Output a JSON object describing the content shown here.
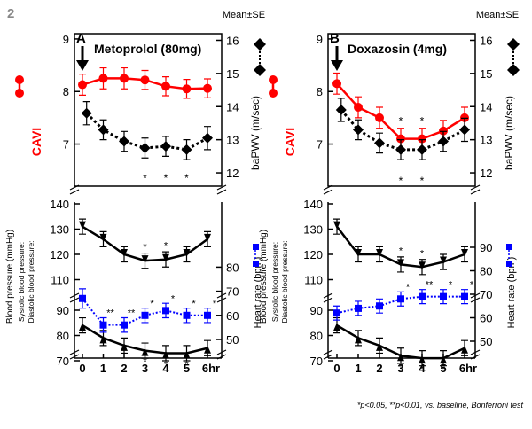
{
  "figure_number": "2",
  "footnote": "*p<0.05, **p<0.01, vs. baseline, Bonferroni test",
  "colors": {
    "cavi": "#ff0000",
    "bapwv": "#000000",
    "bp": "#000000",
    "hr": "#0000ff"
  },
  "chart_data": [
    {
      "type": "line",
      "panel": "A",
      "drug": "Metoprolol (80mg)",
      "mean_label": "Mean±SE",
      "x": [
        0,
        1,
        2,
        3,
        4,
        5,
        6
      ],
      "x_ticks": [
        "0",
        "1",
        "2",
        "3",
        "4",
        "5",
        "6hr"
      ],
      "top": {
        "left_axis": {
          "label": "CAVI",
          "ticks": [
            "7",
            "8",
            "9"
          ],
          "ylim": [
            6.2,
            9.1
          ]
        },
        "right_axis": {
          "label": "baPWV (m/sec)",
          "ticks": [
            "12",
            "13",
            "14",
            "15",
            "16"
          ],
          "ylim": [
            11.6,
            16.2
          ]
        },
        "series": [
          {
            "name": "CAVI",
            "axis": "left",
            "marker": "circle",
            "values": [
              8.13,
              8.25,
              8.25,
              8.22,
              8.1,
              8.05,
              8.06
            ],
            "err": [
              0.2,
              0.2,
              0.2,
              0.18,
              0.18,
              0.18,
              0.18
            ]
          },
          {
            "name": "baPWV",
            "axis": "right",
            "marker": "diamond",
            "x": [
              0.2,
              1,
              2,
              3,
              4,
              5,
              6
            ],
            "values": [
              13.8,
              13.3,
              12.95,
              12.75,
              12.8,
              12.7,
              13.05
            ],
            "err": [
              0.35,
              0.3,
              0.3,
              0.3,
              0.3,
              0.3,
              0.35
            ]
          }
        ],
        "significance": [
          "",
          "",
          "",
          "*",
          "*",
          "*",
          ""
        ]
      },
      "bottom": {
        "left_axis": {
          "label": "Blood pressure (mmHg)",
          "sublabels": [
            "Systolic blood pressure:",
            "Diastolic blood pressure:"
          ],
          "ticks": [
            "70",
            "80",
            "90",
            "110",
            "120",
            "130",
            "140"
          ]
        },
        "right_axis": {
          "label": "Heart rate (bpm)",
          "ticks": [
            "50",
            "60",
            "70",
            "80"
          ]
        },
        "series": [
          {
            "name": "Systolic blood pressure",
            "marker": "down-arrow",
            "values": [
              131,
              126,
              120,
              117.5,
              118,
              120,
              126
            ],
            "err": [
              3,
              3,
              3,
              3,
              3,
              3,
              3
            ],
            "significance": [
              "",
              "",
              "",
              "*",
              "*",
              "",
              ""
            ]
          },
          {
            "name": "Diastolic blood pressure",
            "marker": "up-arrow",
            "values": [
              84,
              79,
              76,
              74,
              73,
              73,
              75
            ],
            "err": [
              3,
              3,
              3,
              3,
              3,
              3,
              3
            ],
            "significance": [
              "",
              "",
              "",
              "*",
              "*",
              "*",
              ""
            ]
          },
          {
            "name": "Heart rate",
            "marker": "square",
            "values": [
              67,
              56,
              56,
              60,
              62,
              60,
              60
            ],
            "err": [
              4,
              3,
              3,
              3,
              3,
              3,
              3
            ],
            "significance": [
              "",
              "**",
              "**",
              "*",
              "*",
              "*",
              "*"
            ]
          }
        ]
      }
    },
    {
      "type": "line",
      "panel": "B",
      "drug": "Doxazosin (4mg)",
      "mean_label": "Mean±SE",
      "x": [
        0,
        1,
        2,
        3,
        4,
        5,
        6
      ],
      "x_ticks": [
        "0",
        "1",
        "2",
        "3",
        "4",
        "5",
        "6hr"
      ],
      "top": {
        "left_axis": {
          "label": "CAVI",
          "ticks": [
            "7",
            "8",
            "9"
          ],
          "ylim": [
            6.2,
            9.1
          ]
        },
        "right_axis": {
          "label": "baPWV (m/sec)",
          "ticks": [
            "12",
            "13",
            "14",
            "15",
            "16"
          ],
          "ylim": [
            11.6,
            16.2
          ]
        },
        "series": [
          {
            "name": "CAVI",
            "axis": "left",
            "marker": "circle",
            "values": [
              8.15,
              7.7,
              7.5,
              7.1,
              7.1,
              7.25,
              7.5
            ],
            "err": [
              0.2,
              0.2,
              0.2,
              0.2,
              0.2,
              0.2,
              0.2
            ]
          },
          {
            "name": "baPWV",
            "axis": "right",
            "marker": "diamond",
            "x": [
              0.2,
              1,
              2,
              3,
              4,
              5,
              6
            ],
            "values": [
              13.9,
              13.3,
              12.9,
              12.7,
              12.7,
              12.95,
              13.3
            ],
            "err": [
              0.35,
              0.3,
              0.3,
              0.3,
              0.3,
              0.3,
              0.35
            ]
          }
        ],
        "significance": [
          "",
          "",
          "",
          "*",
          "*",
          "",
          ""
        ],
        "significance_below": [
          "",
          "",
          "",
          "*",
          "*",
          "",
          ""
        ]
      },
      "bottom": {
        "left_axis": {
          "label": "Blood pressure (mmHg)",
          "sublabels": [
            "Systolic blood pressure:",
            "Diastolic blood pressure:"
          ],
          "ticks": [
            "70",
            "80",
            "90",
            "110",
            "120",
            "130",
            "140"
          ]
        },
        "right_axis": {
          "label": "Heart rate (bpm)",
          "ticks": [
            "50",
            "60",
            "70",
            "80",
            "90"
          ]
        },
        "series": [
          {
            "name": "Systolic blood pressure",
            "marker": "down-arrow",
            "values": [
              131,
              120,
              120,
              116,
              115,
              117,
              120
            ],
            "err": [
              3,
              3,
              3,
              3,
              3,
              3,
              3
            ],
            "significance": [
              "",
              "",
              "",
              "*",
              "*",
              "",
              ""
            ]
          },
          {
            "name": "Diastolic blood pressure",
            "marker": "up-arrow",
            "values": [
              84,
              79,
              76,
              72,
              71,
              71,
              75
            ],
            "err": [
              3,
              3,
              3,
              3,
              3,
              3,
              3
            ],
            "significance": [
              "",
              "",
              "",
              "*",
              "*",
              "*",
              ""
            ]
          },
          {
            "name": "Heart rate",
            "marker": "square",
            "values": [
              62,
              64,
              65,
              68,
              69,
              69,
              69
            ],
            "err": [
              3,
              3,
              3,
              3,
              3,
              3,
              3
            ],
            "significance": [
              "",
              "",
              "",
              "*",
              "**",
              "*",
              "*"
            ]
          }
        ]
      }
    }
  ]
}
